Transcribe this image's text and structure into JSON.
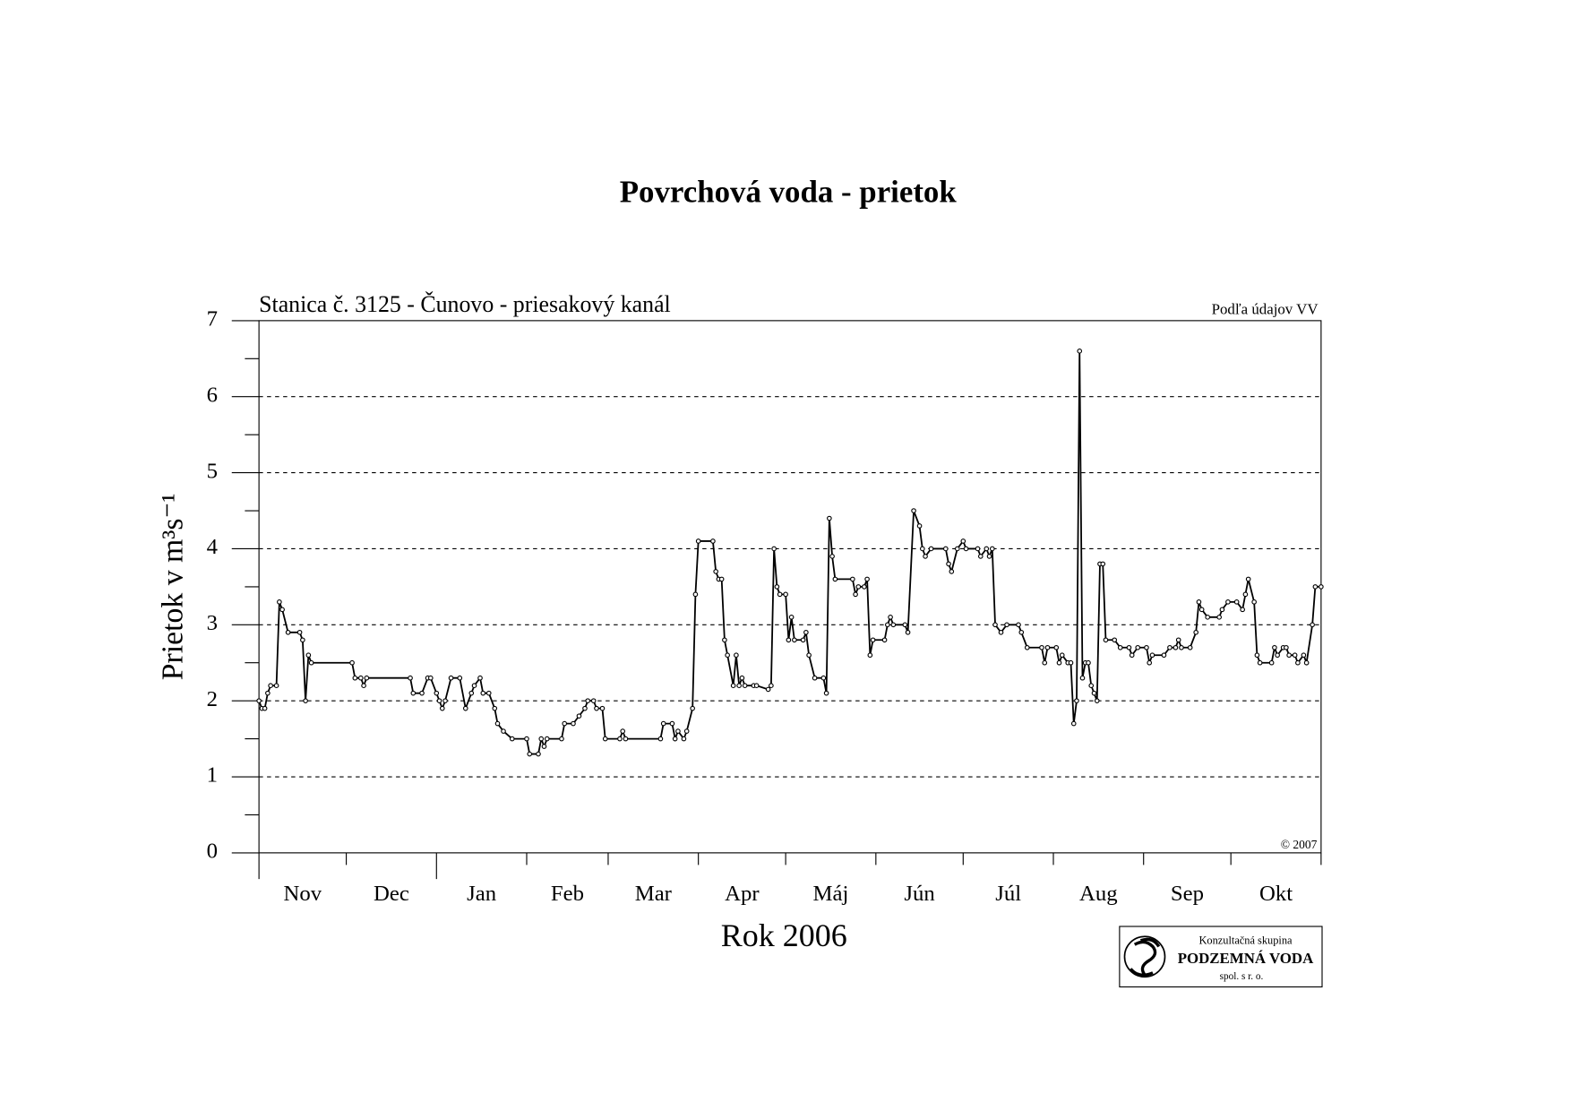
{
  "chart_data": {
    "type": "line",
    "title": "Povrchová voda - prietok",
    "subtitle": "Stanica č. 3125 - Čunovo - priesakový kanál",
    "source": "Podľa údajov VV",
    "copyright": "© 2007",
    "y_label": "Prietok v m³s⁻¹",
    "x_label": "Rok 2006",
    "logo": {
      "line1": "Konzultačná skupina",
      "line2": "PODZEMNÁ VODA",
      "line3": "spol. s r. o."
    },
    "categories": [
      "Nov",
      "Dec",
      "Jan",
      "Feb",
      "Mar",
      "Apr",
      "Máj",
      "Jún",
      "Júl",
      "Aug",
      "Sep",
      "Okt"
    ],
    "xticks": [
      0,
      30,
      61,
      92,
      120,
      151,
      181,
      212,
      242,
      273,
      304,
      334,
      365
    ],
    "xlim": [
      0,
      365
    ],
    "ylim": [
      0,
      7
    ],
    "yticks": [
      0,
      1,
      2,
      3,
      4,
      5,
      6,
      7
    ],
    "grid": true,
    "color": "#000000",
    "x": [
      0,
      1,
      2,
      3,
      4,
      6,
      7,
      8,
      10,
      14,
      15,
      16,
      17,
      18,
      32,
      33,
      35,
      36,
      37,
      52,
      53,
      56,
      58,
      59,
      61,
      62,
      63,
      64,
      66,
      69,
      71,
      73,
      74,
      76,
      77,
      79,
      81,
      82,
      84,
      87,
      92,
      93,
      96,
      97,
      98,
      99,
      104,
      105,
      108,
      110,
      112,
      113,
      115,
      116,
      118,
      119,
      124,
      125,
      126,
      138,
      139,
      142,
      143,
      144,
      146,
      147,
      149,
      150,
      151,
      156,
      157,
      158,
      159,
      160,
      161,
      163,
      164,
      165,
      166,
      167,
      170,
      171,
      175,
      176,
      177,
      178,
      179,
      181,
      182,
      183,
      184,
      187,
      188,
      189,
      191,
      194,
      195,
      196,
      197,
      198,
      204,
      205,
      206,
      208,
      209,
      210,
      211,
      215,
      216,
      217,
      218,
      222,
      223,
      225,
      227,
      228,
      229,
      231,
      236,
      237,
      238,
      240,
      242,
      243,
      247,
      248,
      250,
      251,
      252,
      253,
      255,
      257,
      261,
      262,
      264,
      269,
      270,
      271,
      274,
      275,
      276,
      278,
      279,
      280,
      281,
      282,
      283,
      284,
      285,
      286,
      287,
      288,
      289,
      290,
      291,
      294,
      296,
      299,
      300,
      302,
      305,
      306,
      307,
      311,
      313,
      315,
      316,
      317,
      320,
      322,
      323,
      324,
      326,
      330,
      331,
      333,
      336,
      338,
      339,
      340,
      342,
      343,
      344,
      348,
      349,
      350,
      352,
      353,
      354,
      356,
      357,
      359,
      360,
      362,
      363,
      365
    ],
    "values": [
      2.0,
      1.9,
      1.9,
      2.1,
      2.2,
      2.2,
      3.3,
      3.2,
      2.9,
      2.9,
      2.8,
      2.0,
      2.6,
      2.5,
      2.5,
      2.3,
      2.3,
      2.2,
      2.3,
      2.3,
      2.1,
      2.1,
      2.3,
      2.3,
      2.1,
      2.0,
      1.9,
      2.0,
      2.3,
      2.3,
      1.9,
      2.1,
      2.2,
      2.3,
      2.1,
      2.1,
      1.9,
      1.7,
      1.6,
      1.5,
      1.5,
      1.3,
      1.3,
      1.5,
      1.4,
      1.5,
      1.5,
      1.7,
      1.7,
      1.8,
      1.9,
      2.0,
      2.0,
      1.9,
      1.9,
      1.5,
      1.5,
      1.6,
      1.5,
      1.5,
      1.7,
      1.7,
      1.5,
      1.6,
      1.5,
      1.6,
      1.9,
      3.4,
      4.1,
      4.1,
      3.7,
      3.6,
      3.6,
      2.8,
      2.6,
      2.2,
      2.6,
      2.2,
      2.3,
      2.2,
      2.2,
      2.2,
      2.15,
      2.2,
      4.0,
      3.5,
      3.4,
      3.4,
      2.8,
      3.1,
      2.8,
      2.8,
      2.9,
      2.6,
      2.3,
      2.3,
      2.1,
      4.4,
      3.9,
      3.6,
      3.6,
      3.4,
      3.5,
      3.5,
      3.6,
      2.6,
      2.8,
      2.8,
      3.0,
      3.1,
      3.0,
      3.0,
      2.9,
      4.5,
      4.3,
      4.0,
      3.9,
      4.0,
      4.0,
      3.8,
      3.7,
      4.0,
      4.1,
      4.0,
      4.0,
      3.9,
      4.0,
      3.9,
      4.0,
      3.0,
      2.9,
      3.0,
      3.0,
      2.9,
      2.7,
      2.7,
      2.5,
      2.7,
      2.7,
      2.5,
      2.6,
      2.5,
      2.5,
      1.7,
      2.0,
      6.6,
      2.3,
      2.5,
      2.5,
      2.2,
      2.1,
      2.0,
      3.8,
      3.8,
      2.8,
      2.8,
      2.7,
      2.7,
      2.6,
      2.7,
      2.7,
      2.5,
      2.6,
      2.6,
      2.7,
      2.7,
      2.8,
      2.7,
      2.7,
      2.9,
      3.3,
      3.2,
      3.1,
      3.1,
      3.2,
      3.3,
      3.3,
      3.2,
      3.4,
      3.6,
      3.3,
      2.6,
      2.5,
      2.5,
      2.7,
      2.6,
      2.7,
      2.7,
      2.6,
      2.6,
      2.5,
      2.6,
      2.5,
      3.0,
      3.5,
      3.5
    ]
  }
}
